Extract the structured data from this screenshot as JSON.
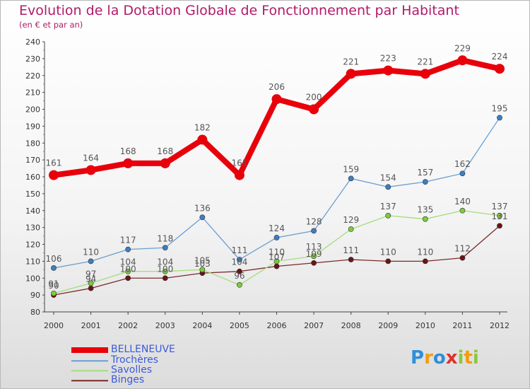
{
  "header": {
    "title": "Evolution de la Dotation Globale de Fonctionnement par Habitant",
    "subtitle": "(en € et par an)"
  },
  "logo": {
    "text": "Proxiti",
    "letters": [
      {
        "ch": "P",
        "color": "#2f8fd8"
      },
      {
        "ch": "r",
        "color": "#f39c12"
      },
      {
        "ch": "o",
        "color": "#2f8fd8"
      },
      {
        "ch": "x",
        "color": "#e0312c"
      },
      {
        "ch": "i",
        "color": "#8cc63f"
      },
      {
        "ch": "t",
        "color": "#f39c12"
      },
      {
        "ch": "i",
        "color": "#8cc63f"
      }
    ]
  },
  "chart_data": {
    "type": "line",
    "title": "Evolution de la Dotation Globale de Fonctionnement par Habitant",
    "subtitle": "(en € et par an)",
    "x": [
      2000,
      2001,
      2002,
      2003,
      2004,
      2005,
      2006,
      2007,
      2008,
      2009,
      2010,
      2011,
      2012
    ],
    "ylim": [
      80,
      240
    ],
    "ytick_step": 10,
    "grid": false,
    "legend_position": "bottom-left",
    "series": [
      {
        "name": "BELLENEUVE",
        "color": "#e8000b",
        "marker": "#e8000b",
        "label_color": "#555555",
        "values": [
          161,
          164,
          168,
          168,
          182,
          161,
          206,
          200,
          221,
          223,
          221,
          229,
          224
        ]
      },
      {
        "name": "Trochères",
        "color": "#6a9fd2",
        "marker": "#3b7fc4",
        "label_color": "#555555",
        "values": [
          106,
          110,
          117,
          118,
          136,
          111,
          124,
          128,
          159,
          154,
          157,
          162,
          195
        ]
      },
      {
        "name": "Savolles",
        "color": "#a5dc7c",
        "marker": "#7ccc3c",
        "label_color": "#555555",
        "values": [
          91,
          97,
          104,
          104,
          105,
          96,
          110,
          113,
          129,
          137,
          135,
          140,
          137
        ]
      },
      {
        "name": "Binges",
        "color": "#7a2a2a",
        "marker": "#6b1414",
        "label_color": "#555555",
        "values": [
          90,
          94,
          100,
          100,
          103,
          104,
          107,
          109,
          111,
          110,
          110,
          112,
          131
        ]
      }
    ]
  }
}
